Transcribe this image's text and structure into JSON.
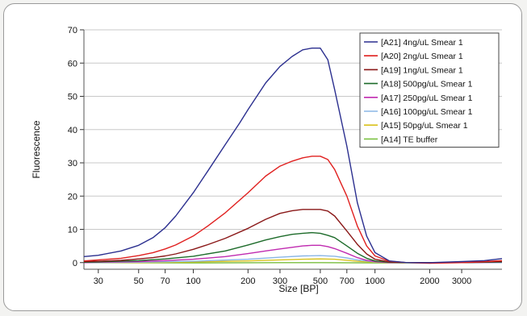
{
  "chart_data": {
    "type": "line",
    "title": "",
    "xlabel": "Size [BP]",
    "ylabel": "Fluorescence",
    "xscale": "log",
    "xlim": [
      25,
      5000
    ],
    "ylim": [
      -2,
      70
    ],
    "grid": true,
    "legend_position": "top-right",
    "x_ticks": [
      30,
      50,
      70,
      100,
      200,
      300,
      500,
      700,
      1000,
      2000,
      3000
    ],
    "y_ticks": [
      0,
      10,
      20,
      30,
      40,
      50,
      60,
      70
    ],
    "series": [
      {
        "name": "[A21] 4ng/uL Smear 1",
        "color": "#2b2f8f",
        "x": [
          25,
          30,
          40,
          50,
          60,
          70,
          80,
          100,
          120,
          150,
          180,
          200,
          250,
          300,
          350,
          400,
          450,
          500,
          550,
          600,
          700,
          800,
          900,
          1000,
          1200,
          1500,
          2000,
          3000,
          4000,
          5000
        ],
        "y": [
          1.8,
          2.2,
          3.5,
          5.2,
          7.5,
          10.5,
          14,
          21,
          27.5,
          35.5,
          42,
          46,
          54,
          59,
          62,
          64,
          64.5,
          64.5,
          61,
          52,
          35,
          18,
          8,
          3,
          0.5,
          0,
          0,
          0.3,
          0.6,
          1.2
        ]
      },
      {
        "name": "[A20] 2ng/uL Smear 1",
        "color": "#e0201f",
        "x": [
          25,
          30,
          40,
          50,
          60,
          70,
          80,
          100,
          120,
          150,
          200,
          250,
          300,
          350,
          400,
          450,
          500,
          550,
          600,
          700,
          800,
          900,
          1000,
          1200,
          1500,
          2000,
          3000,
          4000,
          5000
        ],
        "y": [
          0.5,
          0.8,
          1.3,
          2.1,
          3,
          4.1,
          5.3,
          8,
          11,
          15,
          21,
          26,
          29,
          30.5,
          31.5,
          32,
          32,
          31,
          28,
          20,
          11,
          5,
          2,
          0.4,
          0,
          -0.2,
          0,
          0.3,
          0.6
        ]
      },
      {
        "name": "[A19] 1ng/uL Smear 1",
        "color": "#8a1818",
        "x": [
          25,
          30,
          40,
          50,
          60,
          70,
          80,
          100,
          120,
          150,
          200,
          250,
          300,
          350,
          400,
          450,
          500,
          550,
          600,
          700,
          800,
          900,
          1000,
          1200,
          1500,
          2000,
          3000,
          4000,
          5000
        ],
        "y": [
          0.3,
          0.4,
          0.7,
          1.1,
          1.5,
          2,
          2.6,
          4,
          5.4,
          7.3,
          10.3,
          13,
          14.8,
          15.6,
          16,
          16,
          16,
          15.5,
          14,
          9.5,
          5.5,
          2.6,
          1,
          0.2,
          0,
          0,
          0,
          0.2,
          0.4
        ]
      },
      {
        "name": "[A18] 500pg/uL Smear 1",
        "color": "#1d6b2a",
        "x": [
          25,
          30,
          50,
          70,
          100,
          150,
          200,
          250,
          300,
          350,
          400,
          450,
          500,
          550,
          600,
          700,
          800,
          900,
          1000,
          1200,
          1500,
          2000,
          3000,
          5000
        ],
        "y": [
          0.1,
          0.2,
          0.6,
          1.1,
          1.9,
          3.5,
          5.3,
          6.8,
          7.8,
          8.5,
          8.8,
          9,
          8.8,
          8.2,
          7.5,
          5,
          2.8,
          1.3,
          0.5,
          0.1,
          0,
          0,
          0,
          0.2
        ]
      },
      {
        "name": "[A17] 250pg/uL Smear 1",
        "color": "#c02bb0",
        "x": [
          25,
          30,
          50,
          70,
          100,
          150,
          200,
          250,
          300,
          350,
          400,
          450,
          500,
          550,
          600,
          700,
          800,
          900,
          1000,
          1200,
          1500,
          2000,
          3000,
          5000
        ],
        "y": [
          0,
          0.1,
          0.3,
          0.6,
          1,
          1.8,
          2.7,
          3.5,
          4.1,
          4.6,
          5,
          5.2,
          5.2,
          4.8,
          4.2,
          2.8,
          1.5,
          0.7,
          0.3,
          0,
          0,
          0,
          0,
          0.1
        ]
      },
      {
        "name": "[A16] 100pg/uL Smear 1",
        "color": "#8ab6e6",
        "x": [
          25,
          50,
          100,
          200,
          300,
          400,
          500,
          600,
          700,
          800,
          1000,
          1500,
          3000,
          5000
        ],
        "y": [
          0,
          0.1,
          0.4,
          1,
          1.6,
          2,
          2.1,
          1.9,
          1.4,
          0.8,
          0.2,
          0,
          0,
          0
        ]
      },
      {
        "name": "[A15] 50pg/uL Smear 1",
        "color": "#d9c21c",
        "x": [
          25,
          50,
          100,
          200,
          300,
          400,
          500,
          600,
          700,
          800,
          1000,
          1500,
          3000,
          5000
        ],
        "y": [
          0,
          0,
          0.2,
          0.5,
          0.8,
          1,
          1.1,
          1,
          0.7,
          0.4,
          0.1,
          0,
          0,
          0
        ]
      },
      {
        "name": "[A14] TE buffer",
        "color": "#7cc242",
        "x": [
          25,
          100,
          300,
          500,
          1000,
          3000,
          5000
        ],
        "y": [
          0,
          -0.1,
          0,
          0,
          -0.1,
          0,
          0
        ]
      }
    ]
  }
}
